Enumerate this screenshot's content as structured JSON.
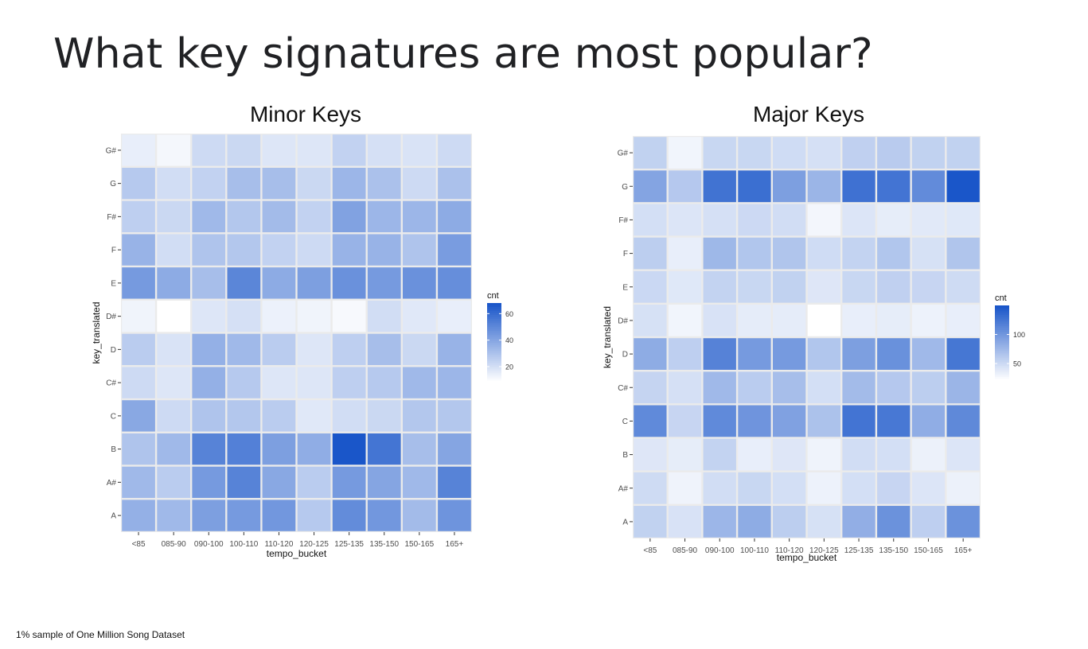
{
  "page": {
    "title": "What key signatures are most popular?",
    "footnote": "1% sample of One Million Song Dataset"
  },
  "colors": {
    "low": "#ffffff",
    "high": "#1a56c9",
    "panel": "#ebebeb",
    "grid": "#ffffff"
  },
  "chart_data": [
    {
      "type": "heatmap",
      "title": "Minor Keys",
      "xlabel": "tempo_bucket",
      "ylabel": "key_translated",
      "legend_title": "cnt",
      "legend_ticks": [
        20,
        40,
        60
      ],
      "legend_placement": "right",
      "value_range": [
        8,
        68
      ],
      "x_categories": [
        "<85",
        "085-90",
        "090-100",
        "100-110",
        "110-120",
        "120-125",
        "125-135",
        "135-150",
        "150-165",
        "165+"
      ],
      "y_categories": [
        "A",
        "A#",
        "B",
        "C",
        "C#",
        "D",
        "D#",
        "E",
        "F",
        "F#",
        "G",
        "G#"
      ],
      "values": [
        [
          36,
          33,
          42,
          44,
          45,
          27,
          49,
          45,
          32,
          46
        ],
        [
          33,
          26,
          44,
          52,
          39,
          26,
          44,
          40,
          33,
          52
        ],
        [
          29,
          33,
          52,
          53,
          42,
          37,
          68,
          57,
          31,
          40
        ],
        [
          39,
          21,
          29,
          28,
          26,
          16,
          20,
          22,
          28,
          28
        ],
        [
          21,
          17,
          36,
          27,
          17,
          17,
          25,
          27,
          33,
          34
        ],
        [
          26,
          18,
          36,
          33,
          26,
          17,
          25,
          31,
          22,
          35
        ],
        [
          12,
          8,
          17,
          19,
          13,
          12,
          10,
          20,
          16,
          14
        ],
        [
          44,
          38,
          31,
          51,
          38,
          42,
          47,
          44,
          47,
          48
        ],
        [
          35,
          20,
          29,
          28,
          24,
          21,
          35,
          35,
          29,
          43
        ],
        [
          25,
          22,
          33,
          28,
          32,
          24,
          41,
          34,
          34,
          38
        ],
        [
          27,
          20,
          24,
          31,
          31,
          22,
          34,
          30,
          21,
          30
        ],
        [
          14,
          11,
          21,
          22,
          17,
          17,
          24,
          19,
          18,
          21
        ]
      ]
    },
    {
      "type": "heatmap",
      "title": "Major Keys",
      "xlabel": "tempo_bucket",
      "ylabel": "key_translated",
      "legend_title": "cnt",
      "legend_ticks": [
        50,
        100
      ],
      "legend_placement": "right",
      "value_range": [
        20,
        150
      ],
      "x_categories": [
        "<85",
        "085-90",
        "090-100",
        "100-110",
        "110-120",
        "120-125",
        "125-135",
        "135-150",
        "150-165",
        "165+"
      ],
      "y_categories": [
        "A",
        "A#",
        "B",
        "C",
        "C#",
        "D",
        "D#",
        "E",
        "F",
        "F#",
        "G",
        "G#"
      ],
      "values": [
        [
          55,
          42,
          76,
          84,
          58,
          43,
          82,
          104,
          57,
          104
        ],
        [
          48,
          29,
          46,
          51,
          45,
          30,
          45,
          52,
          40,
          31
        ],
        [
          39,
          34,
          54,
          33,
          39,
          29,
          46,
          45,
          31,
          40
        ],
        [
          110,
          52,
          110,
          102,
          92,
          67,
          127,
          124,
          83,
          111
        ],
        [
          53,
          44,
          74,
          59,
          70,
          45,
          72,
          62,
          58,
          77
        ],
        [
          84,
          57,
          116,
          98,
          98,
          64,
          94,
          105,
          74,
          125
        ],
        [
          43,
          28,
          42,
          35,
          35,
          20,
          33,
          34,
          30,
          33
        ],
        [
          50,
          38,
          54,
          51,
          55,
          39,
          51,
          56,
          52,
          48
        ],
        [
          58,
          33,
          75,
          64,
          65,
          47,
          54,
          64,
          43,
          65
        ],
        [
          45,
          40,
          44,
          49,
          46,
          27,
          40,
          34,
          37,
          38
        ],
        [
          90,
          62,
          128,
          131,
          94,
          77,
          129,
          127,
          109,
          150
        ],
        [
          55,
          28,
          51,
          51,
          47,
          44,
          56,
          60,
          55,
          55
        ]
      ]
    }
  ]
}
